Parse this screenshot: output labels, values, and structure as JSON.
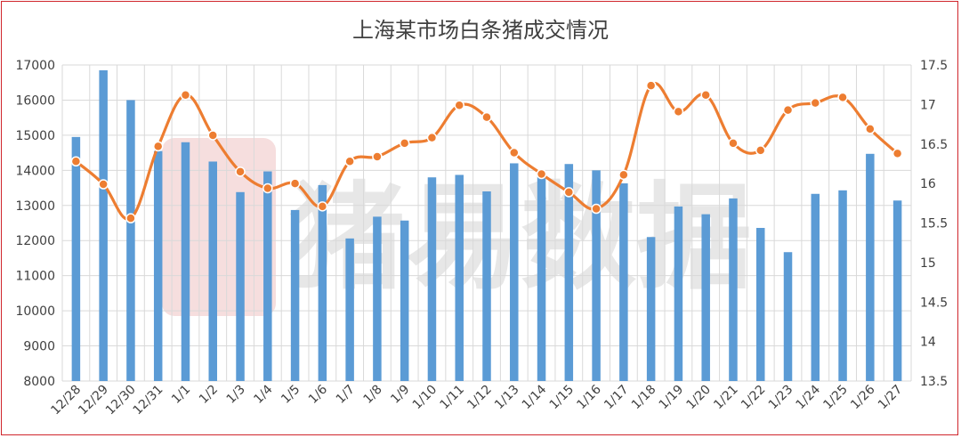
{
  "chart_data": {
    "type": "bar",
    "title": "上海某市场白条猪成交情况",
    "categories": [
      "12/28",
      "12/29",
      "12/30",
      "12/31",
      "1/1",
      "1/2",
      "1/3",
      "1/4",
      "1/5",
      "1/6",
      "1/7",
      "1/8",
      "1/9",
      "1/10",
      "1/11",
      "1/12",
      "1/13",
      "1/14",
      "1/15",
      "1/16",
      "1/17",
      "1/18",
      "1/19",
      "1/20",
      "1/21",
      "1/22",
      "1/23",
      "1/24",
      "1/25",
      "1/26",
      "1/27"
    ],
    "series": [
      {
        "type": "bar",
        "axis": "left",
        "color": "#5b9bd5",
        "values": [
          14950,
          16850,
          16000,
          14550,
          14800,
          14250,
          13380,
          13970,
          12870,
          13580,
          12060,
          12680,
          12570,
          13800,
          13870,
          13400,
          14200,
          13880,
          14180,
          14000,
          13630,
          12100,
          12970,
          12750,
          13200,
          12360,
          11670,
          13330,
          13430,
          14470,
          13140
        ]
      },
      {
        "type": "line",
        "axis": "right",
        "color": "#ed7d31",
        "values": [
          16.28,
          15.99,
          15.56,
          16.47,
          17.12,
          16.61,
          16.15,
          15.94,
          16.0,
          15.71,
          16.28,
          16.34,
          16.51,
          16.58,
          16.99,
          16.84,
          16.39,
          16.12,
          15.89,
          15.68,
          16.11,
          17.24,
          16.91,
          17.12,
          16.51,
          16.42,
          16.93,
          17.02,
          17.09,
          16.69,
          16.38
        ]
      }
    ],
    "ylim_left": [
      8000,
      17000
    ],
    "yticks_left": [
      "17000",
      "16000",
      "15000",
      "14000",
      "13000",
      "12000",
      "11000",
      "10000",
      "9000",
      "8000"
    ],
    "ylim_right": [
      13.5,
      17.5
    ],
    "yticks_right": [
      "17.5",
      "17",
      "16.5",
      "16",
      "15.5",
      "15",
      "14.5",
      "14",
      "13.5"
    ],
    "grid": true,
    "watermark": "猪易数据"
  }
}
